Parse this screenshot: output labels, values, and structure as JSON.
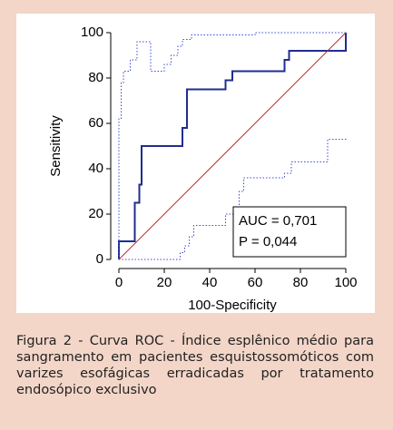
{
  "chart_data": {
    "type": "line",
    "xlabel": "100-Specificity",
    "ylabel": "Sensitivity",
    "xlim": [
      0,
      100
    ],
    "ylim": [
      0,
      100
    ],
    "xticks": [
      0,
      20,
      40,
      60,
      80,
      100
    ],
    "yticks": [
      0,
      20,
      40,
      60,
      80,
      100
    ],
    "series": [
      {
        "color": "#1f2d8f",
        "linestyle": "solid",
        "x": [
          0,
          0,
          7,
          7,
          9,
          9,
          10,
          10,
          28,
          28,
          30,
          30,
          47,
          47,
          50,
          50,
          73,
          73,
          75,
          75,
          100,
          100
        ],
        "values": [
          0,
          8,
          8,
          25,
          25,
          33,
          33,
          50,
          50,
          58,
          58,
          75,
          75,
          79,
          79,
          83,
          83,
          88,
          88,
          92,
          92,
          100
        ]
      },
      {
        "color": "#3c4bd6",
        "linestyle": "dotted",
        "x": [
          0,
          0,
          1,
          1,
          2,
          2,
          5,
          5,
          8,
          8,
          14,
          14,
          20,
          20,
          23,
          23,
          26,
          26,
          28,
          28,
          32,
          32,
          60,
          60,
          100
        ],
        "values": [
          0,
          62,
          62,
          78,
          78,
          83,
          83,
          88,
          88,
          96,
          96,
          83,
          83,
          86,
          86,
          90,
          90,
          94,
          94,
          97,
          97,
          99,
          99,
          100,
          100
        ]
      },
      {
        "color": "#3c4bd6",
        "linestyle": "dotted",
        "x": [
          0,
          27,
          27,
          29,
          29,
          31,
          31,
          33,
          33,
          47,
          47,
          53,
          53,
          55,
          55,
          73,
          73,
          76,
          76,
          92,
          92,
          100,
          100
        ],
        "values": [
          0,
          0,
          3,
          3,
          6,
          6,
          10,
          10,
          15,
          15,
          20,
          20,
          30,
          30,
          36,
          36,
          38,
          38,
          43,
          43,
          53,
          53,
          54
        ]
      },
      {
        "color": "#b03030",
        "linestyle": "thin",
        "x": [
          0,
          100
        ],
        "values": [
          0,
          100
        ]
      }
    ],
    "annotations": [
      "AUC = 0,701",
      "P = 0,044"
    ]
  },
  "caption": "Figura 2 - Curva ROC - Índice esplênico médio para sangramento em pacientes esquistossomóticos com varizes esofágicas erradicadas por tratamento endosópico exclusivo"
}
